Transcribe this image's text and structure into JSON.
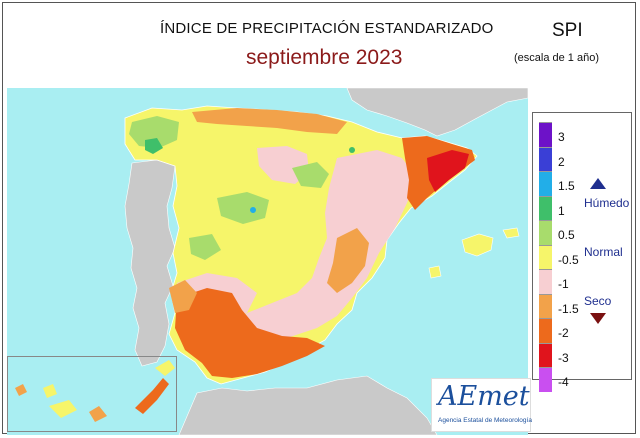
{
  "header": {
    "title": "ÍNDICE DE PRECIPITACIÓN ESTANDARIZADO",
    "subtitle": "septiembre  2023",
    "index_code": "SPI",
    "scale_note": "(escala de 1 año)"
  },
  "legend": {
    "ticks": [
      "3",
      "2",
      "1.5",
      "1",
      "0.5",
      "-0.5",
      "-1",
      "-1.5",
      "-2",
      "-3",
      "-4"
    ],
    "colors": [
      "#6d12c8",
      "#3a3fd6",
      "#22aee8",
      "#3fbf6a",
      "#a8dc6c",
      "#f6f56a",
      "#f7cfd2",
      "#f2a24a",
      "#ed6a1c",
      "#e0141c",
      "#c94ff0"
    ],
    "humid_label": "Húmedo",
    "normal_label": "Normal",
    "dry_label": "Seco",
    "humid_arrow_color": "#1f2f8f",
    "dry_arrow_color": "#7a1010"
  },
  "map": {
    "sea_color": "#a9eef2",
    "land_other_color": "#c9c9c9"
  },
  "logo": {
    "main": "AEmet",
    "sub": "Agencia Estatal de Meteorología"
  }
}
